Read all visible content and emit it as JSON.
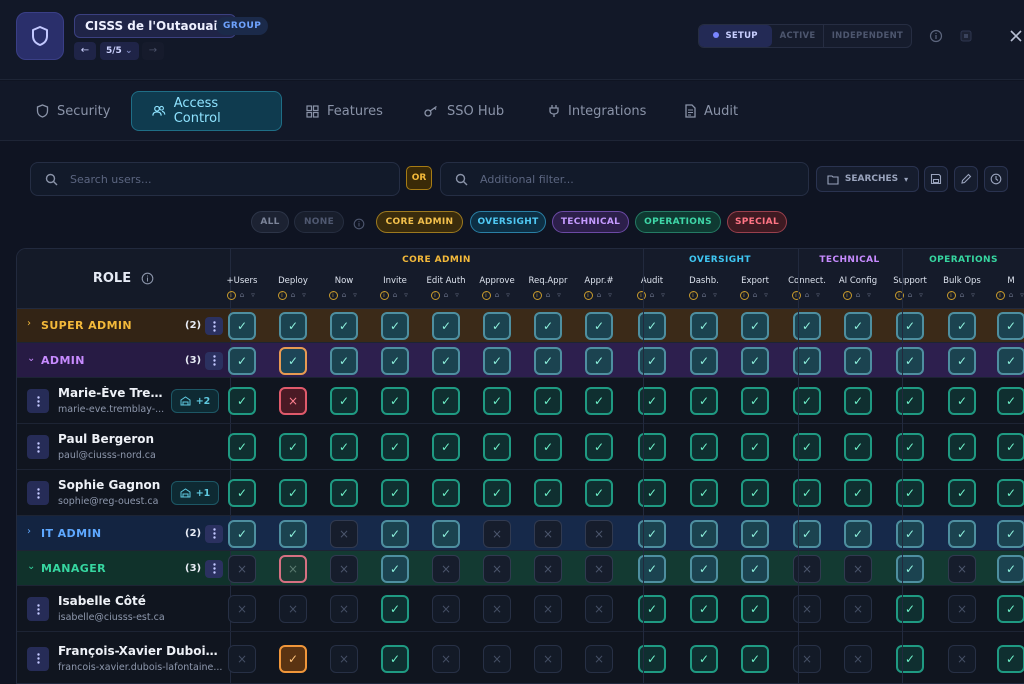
{
  "header": {
    "org_name": "CISSS de l'Outaouais",
    "org_badge": "GROUP",
    "pager": "5/5",
    "pager_chevron": "⌄",
    "modes": [
      "SETUP",
      "ACTIVE",
      "INDEPENDENT"
    ],
    "active_mode": "SETUP",
    "icons": [
      "shield-icon",
      "arrow-left-icon",
      "arrow-right-icon",
      "info-icon",
      "record-icon",
      "close-icon"
    ]
  },
  "tabs": [
    {
      "label": "Security",
      "icon": "shield-icon",
      "active": false
    },
    {
      "label": "Access Control",
      "icon": "users-icon",
      "active": true
    },
    {
      "label": "Features",
      "icon": "grid-icon",
      "active": false
    },
    {
      "label": "SSO Hub",
      "icon": "key-icon",
      "active": false
    },
    {
      "label": "Integrations",
      "icon": "plug-icon",
      "active": false
    },
    {
      "label": "Audit",
      "icon": "document-icon",
      "active": false
    }
  ],
  "search": {
    "primary_placeholder": "Search users...",
    "or_label": "OR",
    "secondary_placeholder": "Additional filter...",
    "searches_label": "SEARCHES"
  },
  "filters": {
    "all": "ALL",
    "none": "NONE",
    "groups": [
      {
        "label": "CORE ADMIN",
        "color": "#f3b93a"
      },
      {
        "label": "OVERSIGHT",
        "color": "#3fc6f2"
      },
      {
        "label": "TECHNICAL",
        "color": "#c78bff"
      },
      {
        "label": "OPERATIONS",
        "color": "#36d6a0"
      },
      {
        "label": "SPECIAL",
        "color": "#ff6b7a"
      }
    ]
  },
  "grid": {
    "role_header": "ROLE",
    "group_headers": [
      {
        "label": "CORE ADMIN",
        "color": "#f3b93a"
      },
      {
        "label": "OVERSIGHT",
        "color": "#3fc6f2"
      },
      {
        "label": "TECHNICAL",
        "color": "#c78bff"
      },
      {
        "label": "OPERATIONS",
        "color": "#36d6a0"
      }
    ],
    "columns": [
      "+Users",
      "Deploy",
      "Now",
      "Invite",
      "Edit Auth",
      "Approve",
      "Req.Appr",
      "Appr.#",
      "Audit",
      "Dashb.",
      "Export",
      "Connect.",
      "AI Config",
      "Support",
      "Bulk Ops",
      "M"
    ],
    "rows": [
      {
        "type": "role",
        "name": "SUPER ADMIN",
        "count": "(2)",
        "expanded": false,
        "color": "#f3b93a",
        "bg": "#3b2a18",
        "cells": [
          "R",
          "R",
          "R",
          "R",
          "R",
          "R",
          "R",
          "R",
          "R",
          "R",
          "R",
          "R",
          "R",
          "R",
          "R",
          "R"
        ]
      },
      {
        "type": "role",
        "name": "ADMIN",
        "count": "(3)",
        "expanded": true,
        "color": "#c78bff",
        "bg": "#2d1f4e",
        "cells": [
          "R",
          "FB",
          "R",
          "R",
          "R",
          "R",
          "R",
          "R",
          "R",
          "R",
          "R",
          "R",
          "R",
          "R",
          "R",
          "R"
        ]
      },
      {
        "type": "user",
        "name": "Marie-Ève Trem...",
        "email": "marie-eve.tremblay-...",
        "extra": "+2",
        "cells": [
          "U",
          "D",
          "U",
          "U",
          "U",
          "U",
          "U",
          "U",
          "U",
          "U",
          "U",
          "U",
          "U",
          "U",
          "U",
          "U"
        ]
      },
      {
        "type": "user",
        "name": "Paul Bergeron",
        "email": "paul@ciusss-nord.ca",
        "extra": "",
        "cells": [
          "U",
          "U",
          "U",
          "U",
          "U",
          "U",
          "U",
          "U",
          "U",
          "U",
          "U",
          "U",
          "U",
          "U",
          "U",
          "U"
        ]
      },
      {
        "type": "user",
        "name": "Sophie Gagnon",
        "email": "sophie@reg-ouest.ca",
        "extra": "+1",
        "cells": [
          "U",
          "U",
          "U",
          "U",
          "U",
          "U",
          "U",
          "U",
          "U",
          "U",
          "U",
          "U",
          "U",
          "U",
          "U",
          "U"
        ]
      },
      {
        "type": "role",
        "name": "IT ADMIN",
        "count": "(2)",
        "expanded": false,
        "color": "#5ea8ff",
        "bg": "#16294a",
        "cells": [
          "R",
          "R",
          "X",
          "R",
          "R",
          "X",
          "X",
          "X",
          "R",
          "R",
          "R",
          "R",
          "R",
          "R",
          "R",
          "R"
        ]
      },
      {
        "type": "role",
        "name": "MANAGER",
        "count": "(3)",
        "expanded": true,
        "color": "#36d6a0",
        "bg": "#133a32",
        "cells": [
          "X",
          "FR",
          "X",
          "R",
          "X",
          "X",
          "X",
          "X",
          "R",
          "R",
          "R",
          "X",
          "X",
          "R",
          "X",
          "R"
        ]
      },
      {
        "type": "user",
        "name": "Isabelle Côté",
        "email": "isabelle@ciusss-est.ca",
        "extra": "",
        "cells": [
          "XD",
          "XD",
          "XD",
          "U",
          "XD",
          "XD",
          "XD",
          "XD",
          "U",
          "U",
          "U",
          "XD",
          "XD",
          "U",
          "XD",
          "U"
        ]
      },
      {
        "type": "user",
        "name": "François-Xavier Dubois-La...",
        "email": "francois-xavier.dubois-lafontaine...",
        "extra": "",
        "cells": [
          "XD",
          "O",
          "XD",
          "U",
          "XD",
          "XD",
          "XD",
          "XD",
          "U",
          "U",
          "U",
          "XD",
          "XD",
          "U",
          "XD",
          "U"
        ]
      }
    ]
  }
}
